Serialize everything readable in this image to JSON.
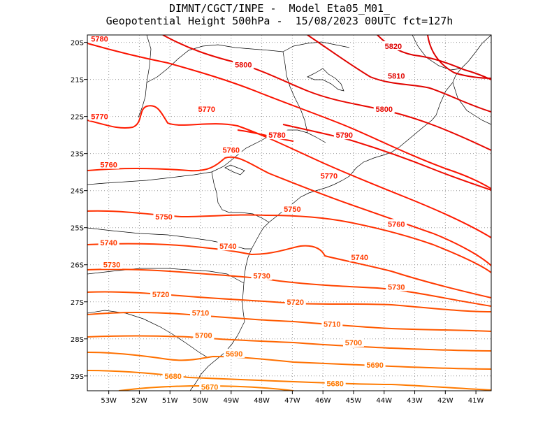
{
  "title": {
    "line1": "DIMNT/CGCT/INPE -  Model Eta05_M01_",
    "line2": "Geopotential Height 500hPa -  15/08/2023 00UTC fct=127h"
  },
  "axes": {
    "lon_labels": [
      "53W",
      "52W",
      "51W",
      "50W",
      "49W",
      "48W",
      "47W",
      "46W",
      "45W",
      "44W",
      "43W",
      "42W",
      "41W"
    ],
    "lat_labels": [
      "20S",
      "21S",
      "22S",
      "23S",
      "24S",
      "25S",
      "26S",
      "27S",
      "28S",
      "29S"
    ],
    "lon_range": [
      -53.7,
      -40.5
    ],
    "lat_range": [
      -29.4,
      -19.8
    ]
  },
  "chart_data": {
    "type": "contour",
    "variable": "Geopotential Height 500hPa",
    "levels": [
      5670,
      5680,
      5690,
      5700,
      5710,
      5720,
      5730,
      5740,
      5750,
      5760,
      5770,
      5780,
      5790,
      5800,
      5810,
      5820
    ],
    "colors": {
      "5670": "#ff8000",
      "5680": "#ff7a00",
      "5690": "#ff7000",
      "5700": "#ff6500",
      "5710": "#ff5a00",
      "5720": "#ff5000",
      "5730": "#ff4500",
      "5740": "#ff3a00",
      "5750": "#ff3000",
      "5760": "#ff2500",
      "5770": "#ff1a00",
      "5780": "#fa1200",
      "5790": "#f00c00",
      "5800": "#e80800",
      "5810": "#e00400",
      "5820": "#dd0000"
    },
    "labels": [
      {
        "text": "5780",
        "lon": -53.3,
        "lat": -19.9
      },
      {
        "text": "5820",
        "lon": -43.7,
        "lat": -20.1
      },
      {
        "text": "5800",
        "lon": -48.6,
        "lat": -20.6
      },
      {
        "text": "5810",
        "lon": -43.6,
        "lat": -20.9
      },
      {
        "text": "5770",
        "lon": -53.3,
        "lat": -22.0
      },
      {
        "text": "5770",
        "lon": -49.8,
        "lat": -21.8
      },
      {
        "text": "5800",
        "lon": -44.0,
        "lat": -21.8
      },
      {
        "text": "5780",
        "lon": -47.5,
        "lat": -22.5
      },
      {
        "text": "5790",
        "lon": -45.3,
        "lat": -22.5
      },
      {
        "text": "5760",
        "lon": -49.0,
        "lat": -22.9
      },
      {
        "text": "5760",
        "lon": -53.0,
        "lat": -23.3
      },
      {
        "text": "5770",
        "lon": -45.8,
        "lat": -23.6
      },
      {
        "text": "5750",
        "lon": -51.2,
        "lat": -24.7
      },
      {
        "text": "5750",
        "lon": -47.0,
        "lat": -24.5
      },
      {
        "text": "5760",
        "lon": -43.6,
        "lat": -24.9
      },
      {
        "text": "5740",
        "lon": -53.0,
        "lat": -25.4
      },
      {
        "text": "5740",
        "lon": -49.1,
        "lat": -25.5
      },
      {
        "text": "5740",
        "lon": -44.8,
        "lat": -25.8
      },
      {
        "text": "5730",
        "lon": -52.9,
        "lat": -26.0
      },
      {
        "text": "5730",
        "lon": -48.0,
        "lat": -26.3
      },
      {
        "text": "5730",
        "lon": -43.6,
        "lat": -26.6
      },
      {
        "text": "5720",
        "lon": -51.3,
        "lat": -26.8
      },
      {
        "text": "5720",
        "lon": -46.9,
        "lat": -27.0
      },
      {
        "text": "5710",
        "lon": -50.0,
        "lat": -27.3
      },
      {
        "text": "5710",
        "lon": -45.7,
        "lat": -27.6
      },
      {
        "text": "5700",
        "lon": -49.9,
        "lat": -27.9
      },
      {
        "text": "5700",
        "lon": -45.0,
        "lat": -28.1
      },
      {
        "text": "5690",
        "lon": -48.9,
        "lat": -28.4
      },
      {
        "text": "5690",
        "lon": -44.3,
        "lat": -28.7
      },
      {
        "text": "5680",
        "lon": -50.9,
        "lat": -29.0
      },
      {
        "text": "5680",
        "lon": -45.6,
        "lat": -29.2
      },
      {
        "text": "5670",
        "lon": -49.7,
        "lat": -29.3
      }
    ]
  }
}
